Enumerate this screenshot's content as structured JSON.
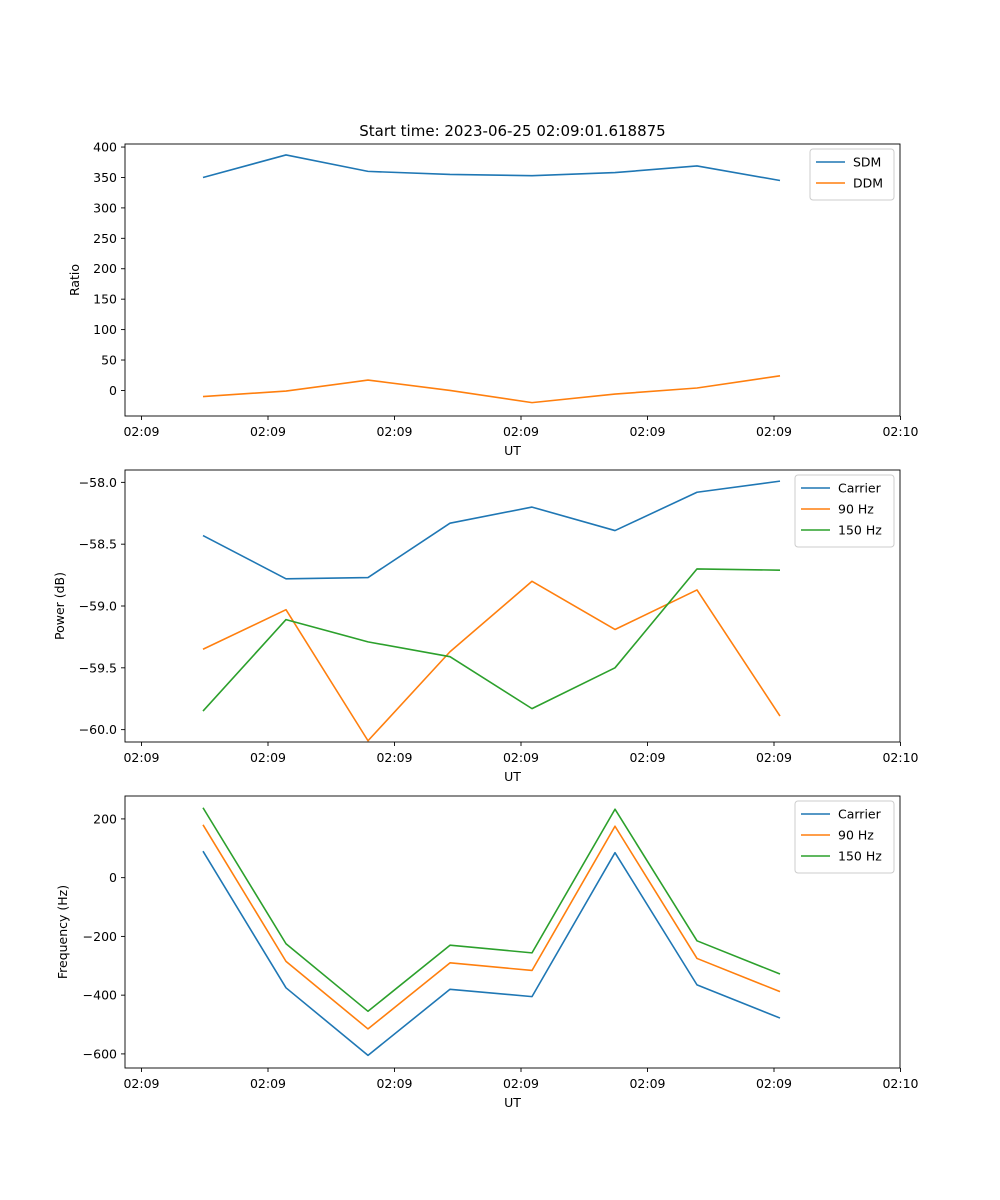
{
  "figure_title": "Start time: 2023-06-25 02:09:01.618875",
  "chart_data": [
    {
      "type": "line",
      "title": "Start time: 2023-06-25 02:09:01.618875",
      "xlabel": "UT",
      "ylabel": "Ratio",
      "x_tick_labels": [
        "02:09",
        "02:09",
        "02:09",
        "02:09",
        "02:09",
        "02:09",
        "02:10"
      ],
      "y_ticks": [
        0,
        50,
        100,
        150,
        200,
        250,
        300,
        350,
        400
      ],
      "ylim": [
        -42,
        405
      ],
      "legend_position": "top-right",
      "series": [
        {
          "name": "SDM",
          "color": "#1f77b4",
          "values": [
            350,
            387,
            360,
            355,
            353,
            358,
            369,
            345
          ]
        },
        {
          "name": "DDM",
          "color": "#ff7f0e",
          "values": [
            -10,
            -1,
            17,
            0,
            -20,
            -6,
            4,
            24
          ]
        }
      ]
    },
    {
      "type": "line",
      "xlabel": "UT",
      "ylabel": "Power (dB)",
      "x_tick_labels": [
        "02:09",
        "02:09",
        "02:09",
        "02:09",
        "02:09",
        "02:09",
        "02:10"
      ],
      "y_ticks": [
        -60.0,
        -59.5,
        -59.0,
        -58.5,
        -58.0
      ],
      "ylim": [
        -60.1,
        -57.9
      ],
      "legend_position": "top-right",
      "series": [
        {
          "name": "Carrier",
          "color": "#1f77b4",
          "values": [
            -58.43,
            -58.78,
            -58.77,
            -58.33,
            -58.2,
            -58.39,
            -58.08,
            -57.99
          ]
        },
        {
          "name": "90 Hz",
          "color": "#ff7f0e",
          "values": [
            -59.35,
            -59.03,
            -60.09,
            -59.37,
            -58.8,
            -59.19,
            -58.87,
            -59.89
          ]
        },
        {
          "name": "150 Hz",
          "color": "#2ca02c",
          "values": [
            -59.85,
            -59.11,
            -59.29,
            -59.41,
            -59.83,
            -59.5,
            -58.7,
            -58.71
          ]
        }
      ]
    },
    {
      "type": "line",
      "xlabel": "UT",
      "ylabel": "Frequency (Hz)",
      "x_tick_labels": [
        "02:09",
        "02:09",
        "02:09",
        "02:09",
        "02:09",
        "02:09",
        "02:10"
      ],
      "y_ticks": [
        -600,
        -400,
        -200,
        0,
        200
      ],
      "ylim": [
        -648,
        278
      ],
      "legend_position": "top-right",
      "series": [
        {
          "name": "Carrier",
          "color": "#1f77b4",
          "values": [
            90,
            -375,
            -605,
            -380,
            -405,
            85,
            -365,
            -478
          ]
        },
        {
          "name": "90 Hz",
          "color": "#ff7f0e",
          "values": [
            180,
            -285,
            -515,
            -290,
            -316,
            175,
            -275,
            -388
          ]
        },
        {
          "name": "150 Hz",
          "color": "#2ca02c",
          "values": [
            238,
            -225,
            -455,
            -230,
            -256,
            233,
            -215,
            -328
          ]
        }
      ]
    }
  ]
}
